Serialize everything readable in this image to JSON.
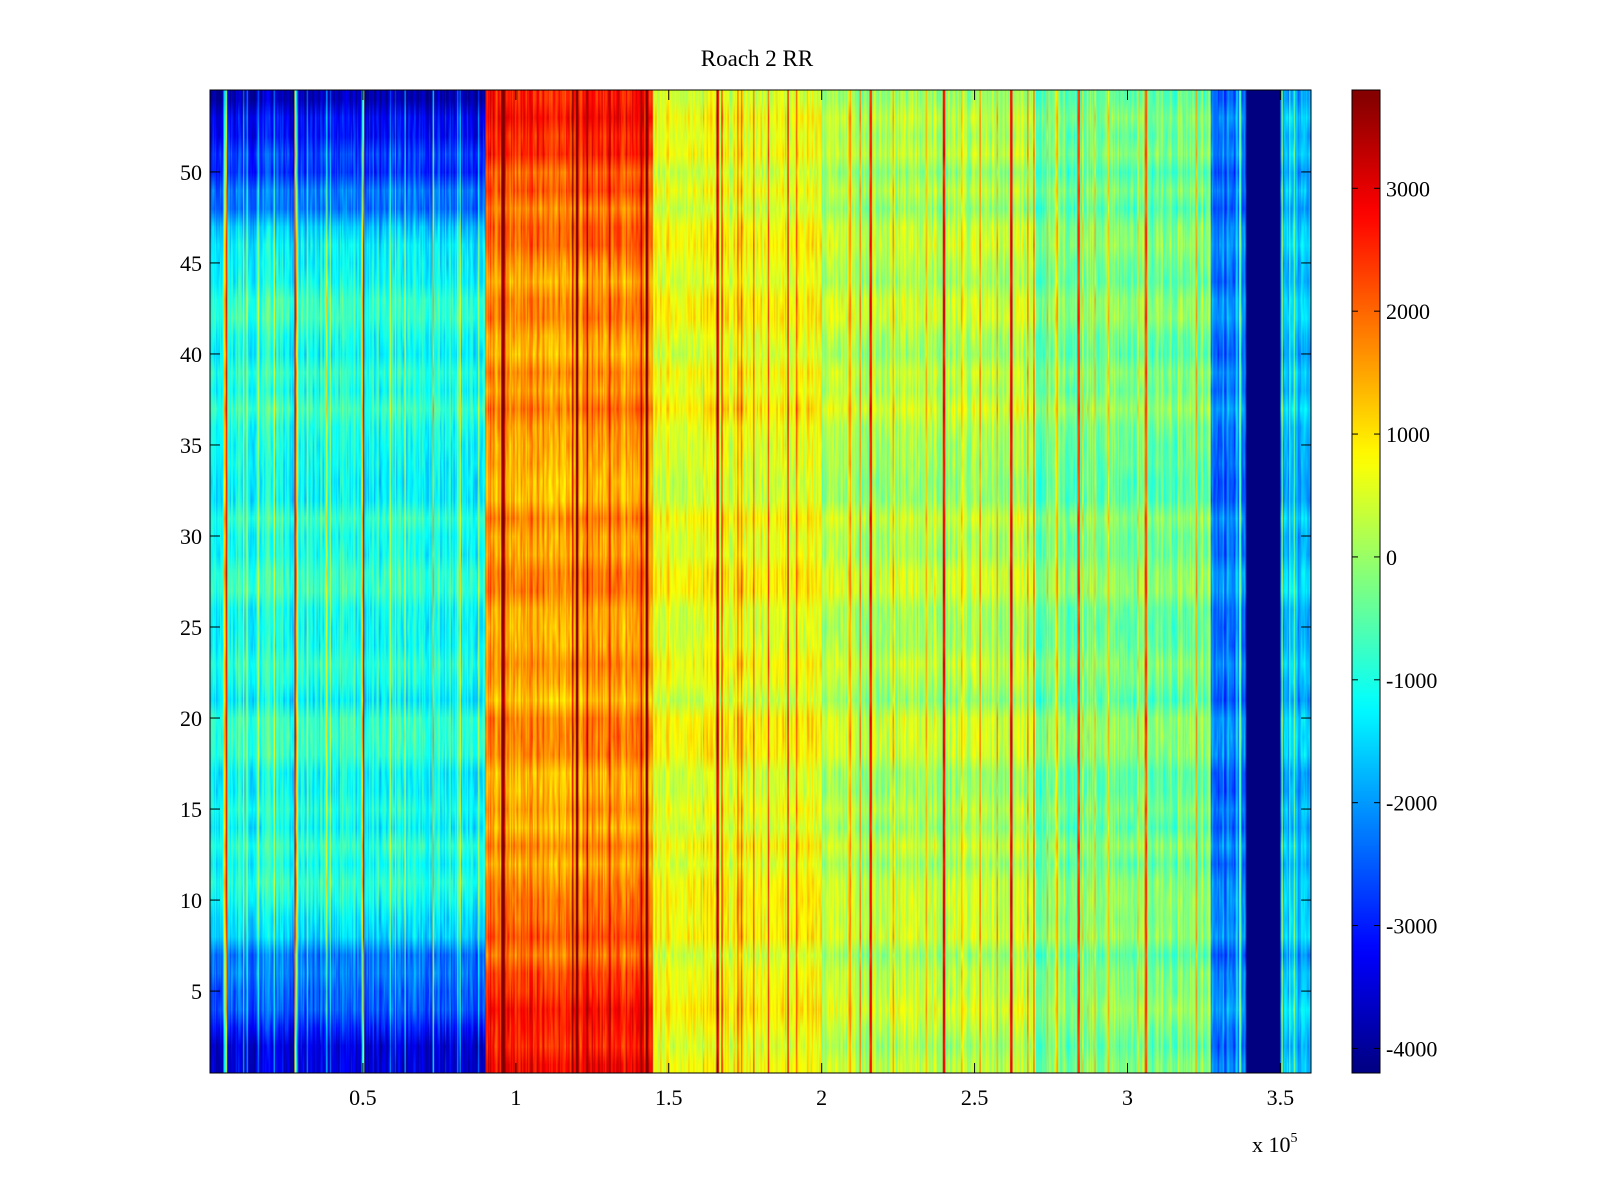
{
  "chart_data": {
    "type": "heatmap",
    "title": "Roach 2 RR",
    "xlabel": "",
    "ylabel": "",
    "x_exponent_label": "x 10",
    "x_exponent_power": "5",
    "xlim": [
      0,
      3.6
    ],
    "ylim": [
      0.5,
      54.5
    ],
    "n_rows": 54,
    "x_ticks": [
      0.5,
      1,
      1.5,
      2,
      2.5,
      3,
      3.5
    ],
    "x_tick_labels": [
      "0.5",
      "1",
      "1.5",
      "2",
      "2.5",
      "3",
      "3.5"
    ],
    "y_ticks": [
      5,
      10,
      15,
      20,
      25,
      30,
      35,
      40,
      45,
      50
    ],
    "y_tick_labels": [
      "5",
      "10",
      "15",
      "20",
      "25",
      "30",
      "35",
      "40",
      "45",
      "50"
    ],
    "colorbar": {
      "colormap": "jet",
      "range": [
        -4200,
        3800
      ],
      "ticks": [
        3000,
        2000,
        1000,
        0,
        -1000,
        -2000,
        -3000,
        -4000
      ],
      "tick_labels": [
        "3000",
        "2000",
        "1000",
        "0",
        "-1000",
        "-2000",
        "-3000",
        "-4000"
      ]
    },
    "column_segments": [
      {
        "x_start": 0.0,
        "x_end": 0.9,
        "base_value": -1000,
        "row_gradient": "edges-low"
      },
      {
        "x_start": 0.9,
        "x_end": 1.45,
        "base_value": 1600,
        "row_gradient": "edges-high"
      },
      {
        "x_start": 1.45,
        "x_end": 2.0,
        "base_value": 700
      },
      {
        "x_start": 2.0,
        "x_end": 2.7,
        "base_value": 200
      },
      {
        "x_start": 2.7,
        "x_end": 3.27,
        "base_value": -300
      },
      {
        "x_start": 3.27,
        "x_end": 3.39,
        "base_value": -2300
      },
      {
        "x_start": 3.39,
        "x_end": 3.5,
        "base_value": -4200
      },
      {
        "x_start": 3.5,
        "x_end": 3.6,
        "base_value": -1800
      }
    ],
    "spike_columns": [
      0.05,
      0.28,
      0.5,
      0.73,
      0.96,
      1.2,
      1.43,
      1.66,
      1.89,
      2.16,
      2.4,
      2.62,
      2.84,
      3.06,
      3.27
    ]
  }
}
